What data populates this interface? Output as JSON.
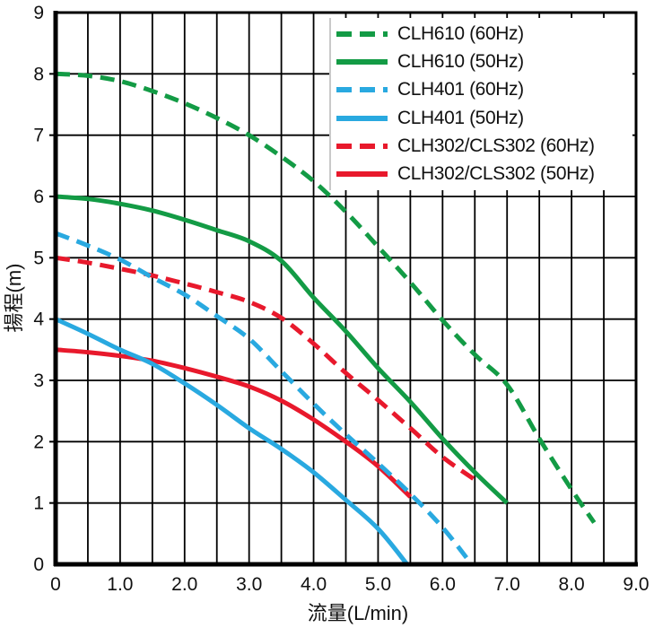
{
  "chart_data": {
    "type": "line",
    "title": "",
    "xlabel": "流量(L/min)",
    "ylabel": "揚程(m)",
    "xlim": [
      0,
      9
    ],
    "ylim": [
      0,
      9
    ],
    "x_tick_labels": [
      "0",
      "1.0",
      "2.0",
      "3.0",
      "4.0",
      "5.0",
      "6.0",
      "7.0",
      "8.0",
      "9.0"
    ],
    "y_tick_labels": [
      "0",
      "1",
      "2",
      "3",
      "4",
      "5",
      "6",
      "7",
      "8",
      "9"
    ],
    "grid": {
      "vertical_step": 0.5,
      "horizontal_step": 1.0,
      "color": "#000000"
    },
    "legend_position": "top-right",
    "axis_color": "#000000",
    "series": [
      {
        "name": "CLH610 (60Hz)",
        "color": "#139b45",
        "style": "dashed",
        "points": [
          [
            0,
            8.0
          ],
          [
            0.5,
            7.97
          ],
          [
            1.0,
            7.88
          ],
          [
            1.5,
            7.72
          ],
          [
            2.0,
            7.52
          ],
          [
            2.5,
            7.28
          ],
          [
            3.0,
            7.0
          ],
          [
            3.5,
            6.65
          ],
          [
            4.0,
            6.25
          ],
          [
            4.5,
            5.75
          ],
          [
            5.0,
            5.18
          ],
          [
            5.5,
            4.6
          ],
          [
            6.0,
            3.98
          ],
          [
            6.5,
            3.42
          ],
          [
            7.0,
            2.93
          ],
          [
            7.5,
            2.05
          ],
          [
            8.0,
            1.22
          ],
          [
            8.35,
            0.68
          ]
        ]
      },
      {
        "name": "CLH610 (50Hz)",
        "color": "#139b45",
        "style": "solid",
        "points": [
          [
            0,
            6.0
          ],
          [
            0.5,
            5.96
          ],
          [
            1.0,
            5.88
          ],
          [
            1.5,
            5.77
          ],
          [
            2.0,
            5.62
          ],
          [
            2.5,
            5.45
          ],
          [
            3.0,
            5.27
          ],
          [
            3.5,
            4.95
          ],
          [
            4.0,
            4.35
          ],
          [
            4.5,
            3.8
          ],
          [
            5.0,
            3.2
          ],
          [
            5.5,
            2.65
          ],
          [
            6.0,
            2.05
          ],
          [
            6.5,
            1.5
          ],
          [
            7.0,
            1.0
          ]
        ]
      },
      {
        "name": "CLH401 (60Hz)",
        "color": "#29a9e0",
        "style": "dashed",
        "points": [
          [
            0,
            5.4
          ],
          [
            0.5,
            5.2
          ],
          [
            1.0,
            4.97
          ],
          [
            1.5,
            4.68
          ],
          [
            2.0,
            4.4
          ],
          [
            2.5,
            4.05
          ],
          [
            3.0,
            3.68
          ],
          [
            3.5,
            3.15
          ],
          [
            4.0,
            2.62
          ],
          [
            4.5,
            2.12
          ],
          [
            5.0,
            1.65
          ],
          [
            5.5,
            1.15
          ],
          [
            6.0,
            0.6
          ],
          [
            6.45,
            0
          ]
        ]
      },
      {
        "name": "CLH401 (50Hz)",
        "color": "#29a9e0",
        "style": "solid",
        "points": [
          [
            0,
            4.0
          ],
          [
            0.5,
            3.76
          ],
          [
            1.0,
            3.5
          ],
          [
            1.5,
            3.27
          ],
          [
            2.0,
            2.95
          ],
          [
            2.5,
            2.6
          ],
          [
            3.0,
            2.22
          ],
          [
            3.5,
            1.88
          ],
          [
            4.0,
            1.5
          ],
          [
            4.5,
            1.05
          ],
          [
            5.0,
            0.58
          ],
          [
            5.45,
            0
          ]
        ]
      },
      {
        "name": "CLH302/CLS302 (60Hz)",
        "color": "#e8192c",
        "style": "dashed",
        "points": [
          [
            0,
            5.0
          ],
          [
            0.5,
            4.92
          ],
          [
            1.0,
            4.82
          ],
          [
            1.5,
            4.71
          ],
          [
            2.0,
            4.58
          ],
          [
            2.5,
            4.44
          ],
          [
            3.0,
            4.28
          ],
          [
            3.5,
            4.02
          ],
          [
            4.0,
            3.6
          ],
          [
            4.5,
            3.12
          ],
          [
            5.0,
            2.68
          ],
          [
            5.5,
            2.22
          ],
          [
            6.0,
            1.75
          ],
          [
            6.5,
            1.38
          ]
        ]
      },
      {
        "name": "CLH302/CLS302 (50Hz)",
        "color": "#e8192c",
        "style": "solid",
        "points": [
          [
            0,
            3.5
          ],
          [
            0.5,
            3.46
          ],
          [
            1.0,
            3.4
          ],
          [
            1.5,
            3.32
          ],
          [
            2.0,
            3.2
          ],
          [
            2.5,
            3.06
          ],
          [
            3.0,
            2.9
          ],
          [
            3.5,
            2.67
          ],
          [
            4.0,
            2.36
          ],
          [
            4.5,
            2.0
          ],
          [
            5.0,
            1.6
          ],
          [
            5.5,
            1.1
          ]
        ]
      }
    ]
  }
}
